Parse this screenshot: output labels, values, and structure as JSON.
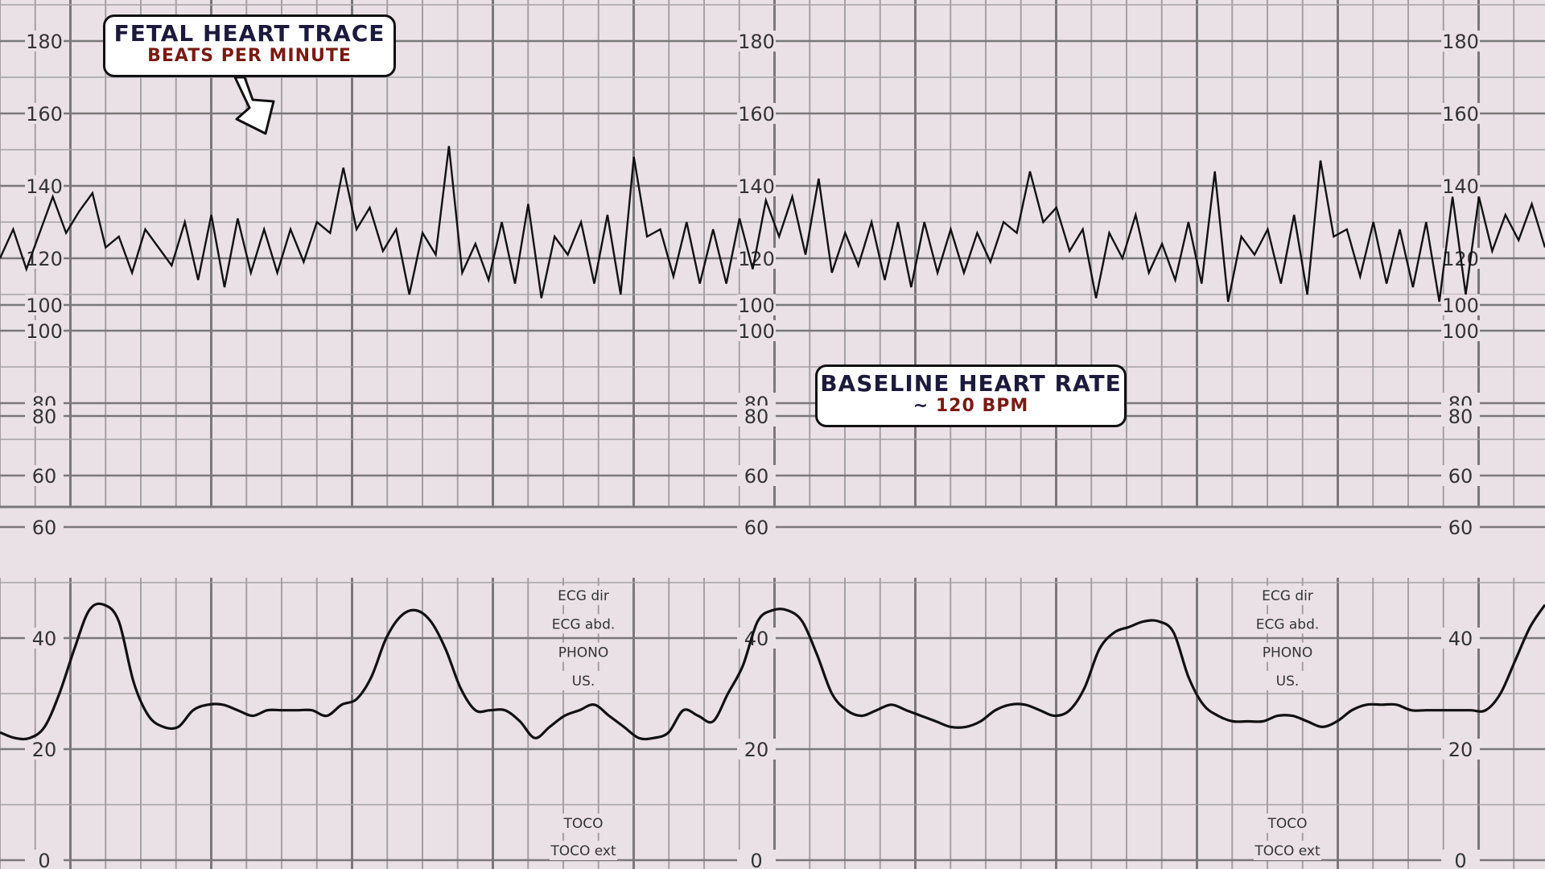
{
  "callouts": {
    "fhr_title": "Fetal heart trace",
    "fhr_subtitle": "Beats per minute",
    "baseline_title": "Baseline heart rate",
    "baseline_prefix": "~ ",
    "baseline_value": "120 BPM"
  },
  "colors": {
    "background": "#e9e1e5",
    "grid_minor": "#a4a1a3",
    "grid_major": "#7b787a",
    "trace": "#111111",
    "callout_title": "#1c1a3c",
    "callout_subtitle": "#7a1a12"
  },
  "chart_data": [
    {
      "type": "line",
      "title": "Fetal heart trace",
      "ylabel": "Beats per minute",
      "ylim": [
        50,
        190
      ],
      "yticks": [
        60,
        80,
        100,
        120,
        140,
        160,
        180
      ],
      "grid": true,
      "series": [
        {
          "values": [
            120,
            128,
            117,
            127,
            137,
            127,
            133,
            138,
            123,
            126,
            116,
            128,
            123,
            118,
            130,
            114,
            132,
            112,
            131,
            116,
            128,
            116,
            128,
            119,
            130,
            127,
            145,
            128,
            134,
            122,
            128,
            110,
            127,
            121,
            151,
            116,
            124,
            114,
            130,
            113,
            135,
            109,
            126,
            121,
            130,
            113,
            132,
            110,
            148,
            126,
            128,
            115,
            130,
            113,
            128,
            113,
            131,
            117,
            136,
            126,
            137,
            121,
            142,
            116,
            127,
            118,
            130,
            114,
            130,
            112,
            130,
            116,
            128,
            116,
            127,
            119,
            130,
            127,
            144,
            130,
            134,
            122,
            128,
            109,
            127,
            120,
            132,
            116,
            124,
            114,
            130,
            113,
            144,
            108,
            126,
            121,
            128,
            113,
            132,
            110,
            147,
            126,
            128,
            115,
            130,
            113,
            128,
            112,
            130,
            108,
            137,
            110,
            137,
            122,
            132,
            125,
            135,
            123
          ]
        }
      ],
      "panel_repeats": 3
    },
    {
      "type": "line",
      "ylim": [
        0,
        100
      ],
      "yticks": [
        0,
        20,
        40,
        60,
        80,
        100
      ],
      "grid": true,
      "series": [
        {
          "values": [
            23,
            22,
            22,
            24,
            30,
            38,
            45,
            46,
            43,
            32,
            26,
            24,
            24,
            27,
            28,
            28,
            27,
            26,
            27,
            27,
            27,
            27,
            26,
            28,
            29,
            33,
            40,
            44,
            45,
            43,
            38,
            31,
            27,
            27,
            27,
            25,
            22,
            24,
            26,
            27,
            28,
            26,
            24,
            22,
            22,
            23,
            27,
            26,
            25,
            30,
            35,
            43,
            45,
            45,
            43,
            37,
            30,
            27,
            26,
            27,
            28,
            27,
            26,
            25,
            24,
            24,
            25,
            27,
            28,
            28,
            27,
            26,
            27,
            31,
            38,
            41,
            42,
            43,
            43,
            41,
            33,
            28,
            26,
            25,
            25,
            25,
            26,
            26,
            25,
            24,
            25,
            27,
            28,
            28,
            28,
            27,
            27,
            27,
            27,
            27,
            27,
            30,
            36,
            42,
            46
          ]
        }
      ],
      "mode_labels_top": [
        "ECG dir",
        "ECG abd.",
        "PHONO",
        "US."
      ],
      "mode_labels_bottom": [
        "TOCO",
        "TOCO ext"
      ],
      "panel_repeats": 3
    }
  ]
}
